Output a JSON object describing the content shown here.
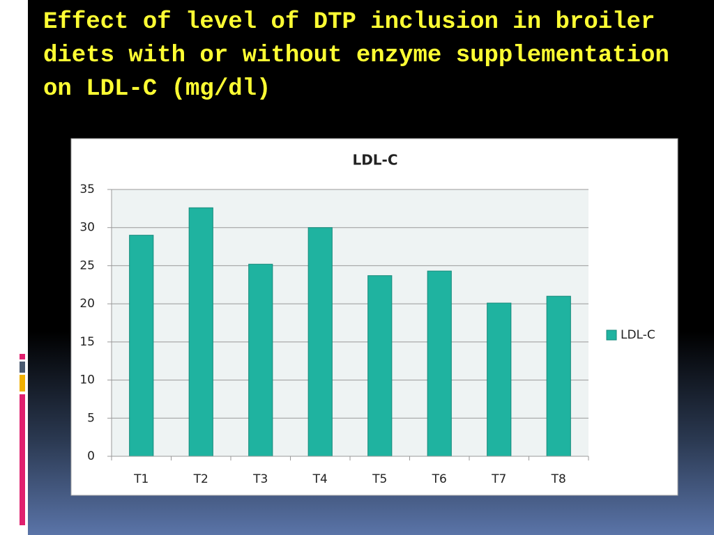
{
  "slide": {
    "title": "Effect of level of DTP inclusion in broiler diets with or without enzyme supplementation on LDL-C (mg/dl)"
  },
  "chart_data": {
    "type": "bar",
    "title": "LDL-C",
    "categories": [
      "T1",
      "T2",
      "T3",
      "T4",
      "T5",
      "T6",
      "T7",
      "T8"
    ],
    "series": [
      {
        "name": "LDL-C",
        "color": "#1fb3a0",
        "values": [
          29.0,
          32.6,
          25.2,
          30.0,
          23.7,
          24.3,
          20.1,
          21.0
        ]
      }
    ],
    "ylim": [
      0,
      35
    ],
    "yticks": [
      0,
      5,
      10,
      15,
      20,
      25,
      30,
      35
    ],
    "grid": true,
    "legend": "right"
  }
}
